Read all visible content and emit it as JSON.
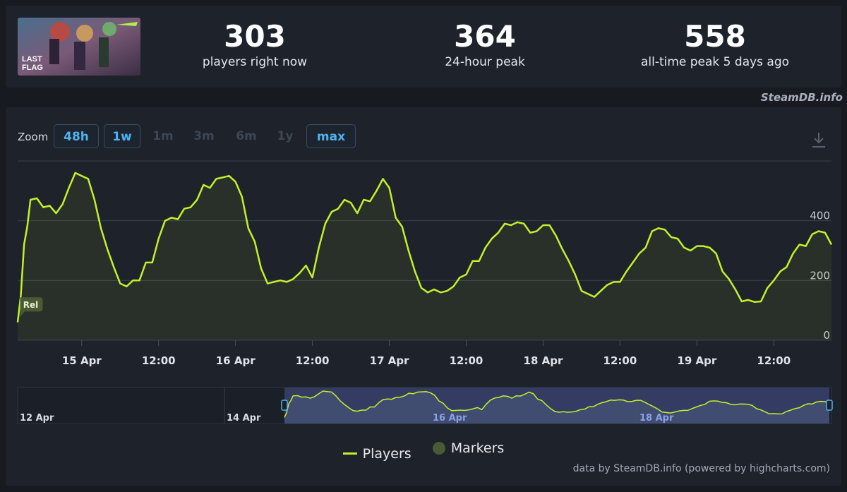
{
  "stats": [
    {
      "value": "303",
      "label": "players right now"
    },
    {
      "value": "364",
      "label": "24-hour peak"
    },
    {
      "value": "558",
      "label": "all-time peak 5 days ago"
    }
  ],
  "credit_top": "SteamDB.info",
  "zoom": {
    "label": "Zoom",
    "buttons": [
      {
        "label": "48h",
        "active": true
      },
      {
        "label": "1w",
        "active": true
      },
      {
        "label": "1m",
        "active": false
      },
      {
        "label": "3m",
        "active": false
      },
      {
        "label": "6m",
        "active": false
      },
      {
        "label": "1y",
        "active": false
      },
      {
        "label": "max",
        "active": true
      }
    ]
  },
  "legend": {
    "players": "Players",
    "markers": "Markers"
  },
  "credit_bottom": "data by SteamDB.info (powered by highcharts.com)",
  "colors": {
    "series": "#c3f02a",
    "marker": "#4a5a34",
    "navigator_selection": "#3a4270",
    "accent": "#4fb3ee"
  },
  "chart_data": {
    "type": "line",
    "title": "",
    "xlabel": "",
    "ylabel": "",
    "ylim": [
      0,
      600
    ],
    "yticks": [
      0,
      200,
      400
    ],
    "x_start": "14 Apr 14:00",
    "x_end": "20 Apr 17:00",
    "x_tick_labels": [
      "15 Apr",
      "12:00",
      "16 Apr",
      "12:00",
      "17 Apr",
      "12:00",
      "18 Apr",
      "12:00",
      "19 Apr",
      "12:00"
    ],
    "x_ticks_hours": [
      10,
      22,
      34,
      46,
      58,
      70,
      82,
      94,
      106,
      118
    ],
    "series": [
      {
        "name": "Players",
        "x_hours": [
          0,
          0.5,
          1,
          1.5,
          2,
          3,
          4,
          5,
          6,
          7,
          8,
          9,
          10,
          11,
          12,
          13,
          14,
          15,
          16,
          17,
          18,
          19,
          20,
          21,
          22,
          23,
          24,
          25,
          26,
          27,
          28,
          29,
          30,
          31,
          32,
          33,
          34,
          35,
          36,
          37,
          38,
          39,
          40,
          41,
          42,
          43,
          44,
          45,
          46,
          47,
          48,
          49,
          50,
          51,
          52,
          53,
          54,
          55,
          56,
          57,
          58,
          59,
          60,
          61,
          62,
          63,
          64,
          65,
          66,
          67,
          68,
          69,
          70,
          71,
          72,
          73,
          74,
          75,
          76,
          77,
          78,
          79,
          80,
          81,
          82,
          83,
          84,
          85,
          86,
          87,
          88,
          89,
          90,
          91,
          92,
          93,
          94,
          95,
          96,
          97,
          98,
          99,
          100,
          101,
          102,
          103,
          104,
          105,
          106,
          107,
          108,
          109,
          110,
          111,
          112,
          113,
          114,
          115,
          116,
          117,
          118,
          119,
          120,
          121,
          122,
          123,
          124,
          125,
          126,
          127
        ],
        "values": [
          60,
          150,
          320,
          380,
          470,
          475,
          445,
          450,
          425,
          455,
          510,
          560,
          550,
          540,
          470,
          375,
          305,
          245,
          190,
          180,
          200,
          200,
          260,
          260,
          340,
          400,
          410,
          405,
          440,
          445,
          470,
          520,
          510,
          540,
          545,
          550,
          530,
          480,
          375,
          330,
          240,
          190,
          195,
          200,
          195,
          205,
          225,
          250,
          210,
          310,
          390,
          430,
          440,
          470,
          460,
          425,
          470,
          465,
          500,
          540,
          510,
          410,
          380,
          300,
          230,
          175,
          160,
          170,
          160,
          165,
          180,
          210,
          220,
          265,
          265,
          310,
          340,
          360,
          390,
          385,
          395,
          390,
          360,
          365,
          385,
          385,
          350,
          305,
          265,
          220,
          165,
          155,
          145,
          165,
          185,
          195,
          195,
          230,
          260,
          290,
          310,
          365,
          375,
          370,
          345,
          340,
          310,
          300,
          315,
          315,
          310,
          290,
          230,
          205,
          170,
          130,
          135,
          128,
          130,
          175,
          200,
          230,
          245,
          290,
          320,
          315,
          355,
          365,
          360,
          320
        ]
      }
    ],
    "markers": [
      {
        "label": "Rel",
        "x_hours": 0.5,
        "y": 120
      }
    ],
    "navigator": {
      "x_tick_labels": [
        "12 Apr",
        "14 Apr",
        "16 Apr",
        "18 Apr"
      ]
    }
  }
}
